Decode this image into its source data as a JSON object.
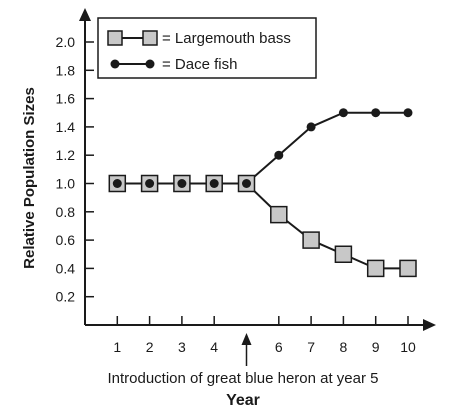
{
  "chart_data": {
    "type": "line",
    "x": [
      1,
      2,
      3,
      4,
      5,
      6,
      7,
      8,
      9,
      10
    ],
    "x_ticks": [
      "1",
      "2",
      "3",
      "4",
      "6",
      "7",
      "8",
      "9",
      "10"
    ],
    "y_ticks": [
      "0.2",
      "0.4",
      "0.6",
      "0.8",
      "1.0",
      "1.2",
      "1.4",
      "1.6",
      "1.8",
      "2.0"
    ],
    "ylim": [
      0,
      2.0
    ],
    "xlim": [
      0,
      10
    ],
    "xlabel": "Year",
    "ylabel": "Relative Population Sizes",
    "annotation": "Introduction of great blue heron at year 5",
    "annotation_x": 5,
    "grid": false,
    "legend_position": "top-left",
    "series": [
      {
        "name": "= Largemouth bass",
        "marker": "square",
        "color": "#c8c8c8",
        "values": [
          1.0,
          1.0,
          1.0,
          1.0,
          1.0,
          0.78,
          0.6,
          0.5,
          0.4,
          0.4
        ]
      },
      {
        "name": "= Dace fish",
        "marker": "circle",
        "color": "#1a1a1a",
        "values": [
          1.0,
          1.0,
          1.0,
          1.0,
          1.0,
          1.2,
          1.4,
          1.5,
          1.5,
          1.5
        ]
      }
    ]
  }
}
